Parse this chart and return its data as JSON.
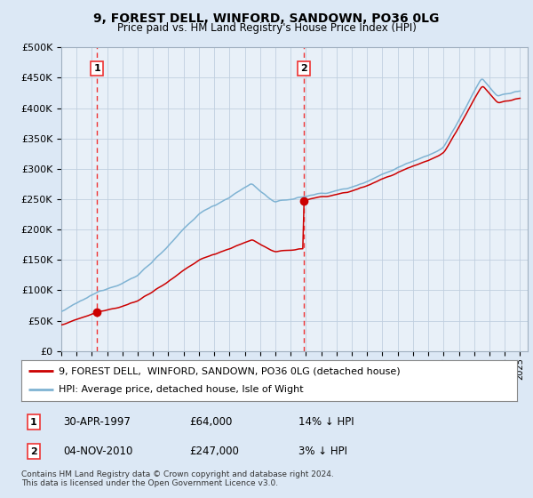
{
  "title": "9, FOREST DELL, WINFORD, SANDOWN, PO36 0LG",
  "subtitle": "Price paid vs. HM Land Registry's House Price Index (HPI)",
  "ylim": [
    0,
    500000
  ],
  "xlim_start": 1995.0,
  "xlim_end": 2025.5,
  "sale1_x": 1997.33,
  "sale1_y": 64000,
  "sale2_x": 2010.84,
  "sale2_y": 247000,
  "legend_property": "9, FOREST DELL,  WINFORD, SANDOWN, PO36 0LG (detached house)",
  "legend_hpi": "HPI: Average price, detached house, Isle of Wight",
  "sale1_date": "30-APR-1997",
  "sale1_price": "£64,000",
  "sale1_hpi": "14% ↓ HPI",
  "sale2_date": "04-NOV-2010",
  "sale2_price": "£247,000",
  "sale2_hpi": "3% ↓ HPI",
  "footer": "Contains HM Land Registry data © Crown copyright and database right 2024.\nThis data is licensed under the Open Government Licence v3.0.",
  "property_line_color": "#cc0000",
  "hpi_line_color": "#7fb3d3",
  "vline_color": "#ee3333",
  "bg_color": "#dce8f5",
  "plot_bg_color": "#e8f0f8",
  "grid_color": "#c0cfe0"
}
